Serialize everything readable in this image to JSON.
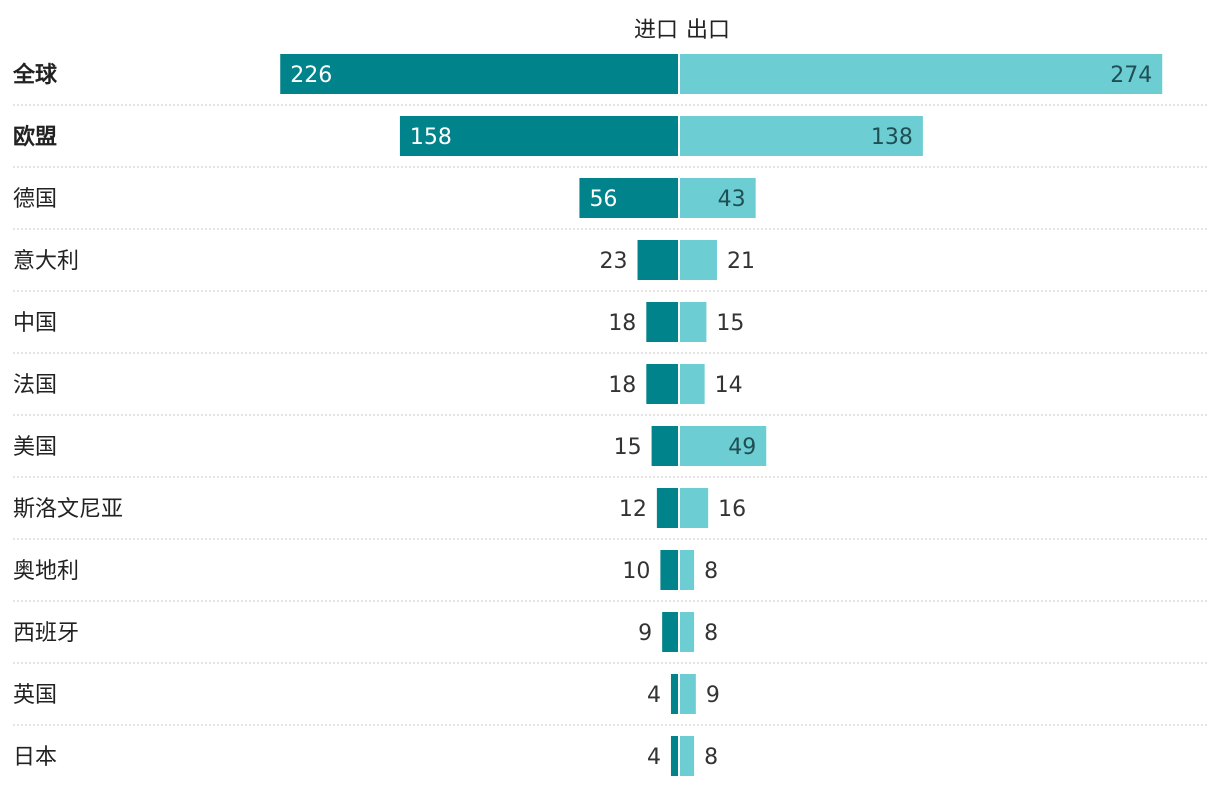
{
  "chart_data": {
    "type": "bar",
    "orientation": "horizontal-diverging",
    "headers": {
      "left": "进口",
      "right": "出口"
    },
    "categories": [
      "全球",
      "欧盟",
      "德国",
      "意大利",
      "中国",
      " 法国",
      "美国",
      "斯洛文尼亚",
      "奥地利",
      "西班牙",
      "英国",
      "日本"
    ],
    "bold_categories": [
      "全球",
      "欧盟"
    ],
    "series": [
      {
        "key": "import",
        "values": [
          226,
          158,
          56,
          23,
          18,
          18,
          15,
          12,
          10,
          9,
          4,
          4
        ],
        "color": "#00838a"
      },
      {
        "key": "export",
        "values": [
          274,
          138,
          43,
          21,
          15,
          14,
          49,
          16,
          8,
          8,
          9,
          8
        ],
        "color": "#6ccdd3"
      }
    ],
    "label_colors": {
      "inside_import": "#ffffff",
      "inside_export": "#1f4f55",
      "outside": "#333333"
    },
    "divider_color": "#c8c8c8"
  }
}
